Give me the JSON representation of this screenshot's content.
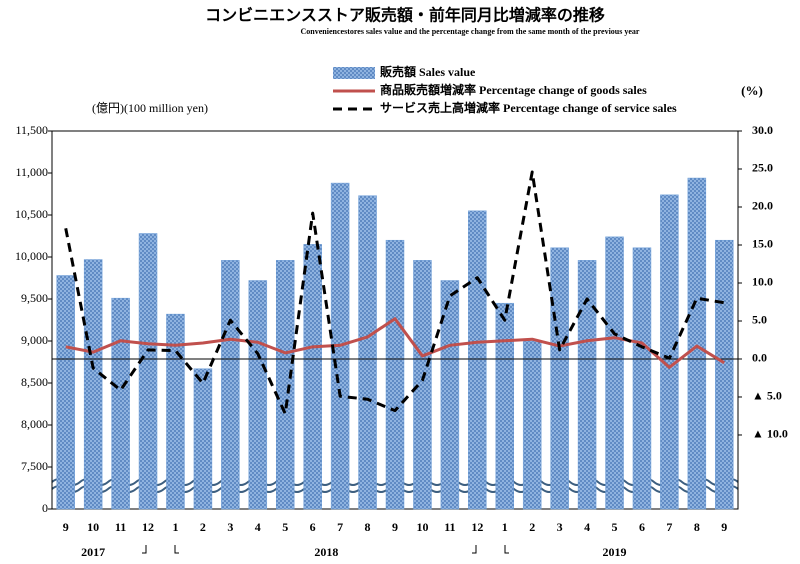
{
  "chart_data": {
    "type": "bar_line",
    "title": "コンビニエンスストア販売額・前年同月比増減率の推移",
    "subtitle": "Conveniencestores sales value and the percentage change from the same month of the previous year",
    "y_label": "(億円)(100 million yen)",
    "y2_label": "(%)",
    "categories": [
      "9",
      "10",
      "11",
      "12",
      "1",
      "2",
      "3",
      "4",
      "5",
      "6",
      "7",
      "8",
      "9",
      "10",
      "11",
      "12",
      "1",
      "2",
      "3",
      "4",
      "5",
      "6",
      "7",
      "8",
      "9"
    ],
    "years": [
      "2017",
      "2018",
      "2019"
    ],
    "ylim": [
      0,
      11500
    ],
    "axis_break": true,
    "yticks": [
      0,
      {
        "value": 7500,
        "label": "7,500"
      },
      {
        "value": 8000,
        "label": "8,000"
      },
      {
        "value": 8500,
        "label": "8,500"
      },
      {
        "value": 9000,
        "label": "9,000"
      },
      {
        "value": 9500,
        "label": "9,500"
      },
      {
        "value": 10000,
        "label": "10,000"
      },
      {
        "value": 10500,
        "label": "10,500"
      },
      {
        "value": 11000,
        "label": "11,000"
      },
      {
        "value": 11500,
        "label": "11,500"
      }
    ],
    "y2lim": [
      -19.74,
      30
    ],
    "y2ticks": [
      {
        "value": -10,
        "label": "▲ 10.0"
      },
      {
        "value": -5,
        "label": "▲ 5.0"
      },
      {
        "value": 0,
        "label": "0.0"
      },
      {
        "value": 5,
        "label": "5.0"
      },
      {
        "value": 10,
        "label": "10.0"
      },
      {
        "value": 15,
        "label": "15.0"
      },
      {
        "value": 20,
        "label": "20.0"
      },
      {
        "value": 25,
        "label": "25.0"
      },
      {
        "value": 30,
        "label": "30.0"
      }
    ],
    "series": [
      {
        "name": "販売額 Sales value",
        "type": "bar",
        "color": "#6f9fd8",
        "values": [
          9780,
          9970,
          9510,
          10280,
          9320,
          8670,
          9960,
          9720,
          9960,
          10150,
          10880,
          10730,
          10200,
          9960,
          9720,
          10550,
          9450,
          9000,
          10110,
          9960,
          10240,
          10110,
          10740,
          10940,
          10200
        ]
      },
      {
        "name": "商品販売額増減率 Percentage change of goods sales",
        "type": "line",
        "axis": "y2",
        "color": "#c0504d",
        "values": [
          1.6,
          0.9,
          2.4,
          2.0,
          1.8,
          2.1,
          2.6,
          2.2,
          0.8,
          1.6,
          1.8,
          2.9,
          5.3,
          0.4,
          1.8,
          2.2,
          2.4,
          2.6,
          1.7,
          2.4,
          2.8,
          2.1,
          -1.1,
          1.7,
          -0.5
        ]
      },
      {
        "name": "サービス売上高増減率 Percentage change of service sales",
        "type": "dashed",
        "axis": "y2",
        "color": "#000000",
        "values": [
          17.2,
          -1.2,
          -4.1,
          1.2,
          1.1,
          -3.2,
          5.1,
          0.7,
          -7.2,
          19.2,
          -4.9,
          -5.3,
          -6.8,
          -2.8,
          8.3,
          10.7,
          5.1,
          24.6,
          1.2,
          7.9,
          3.3,
          1.6,
          0.1,
          8.0,
          7.4
        ]
      }
    ]
  }
}
